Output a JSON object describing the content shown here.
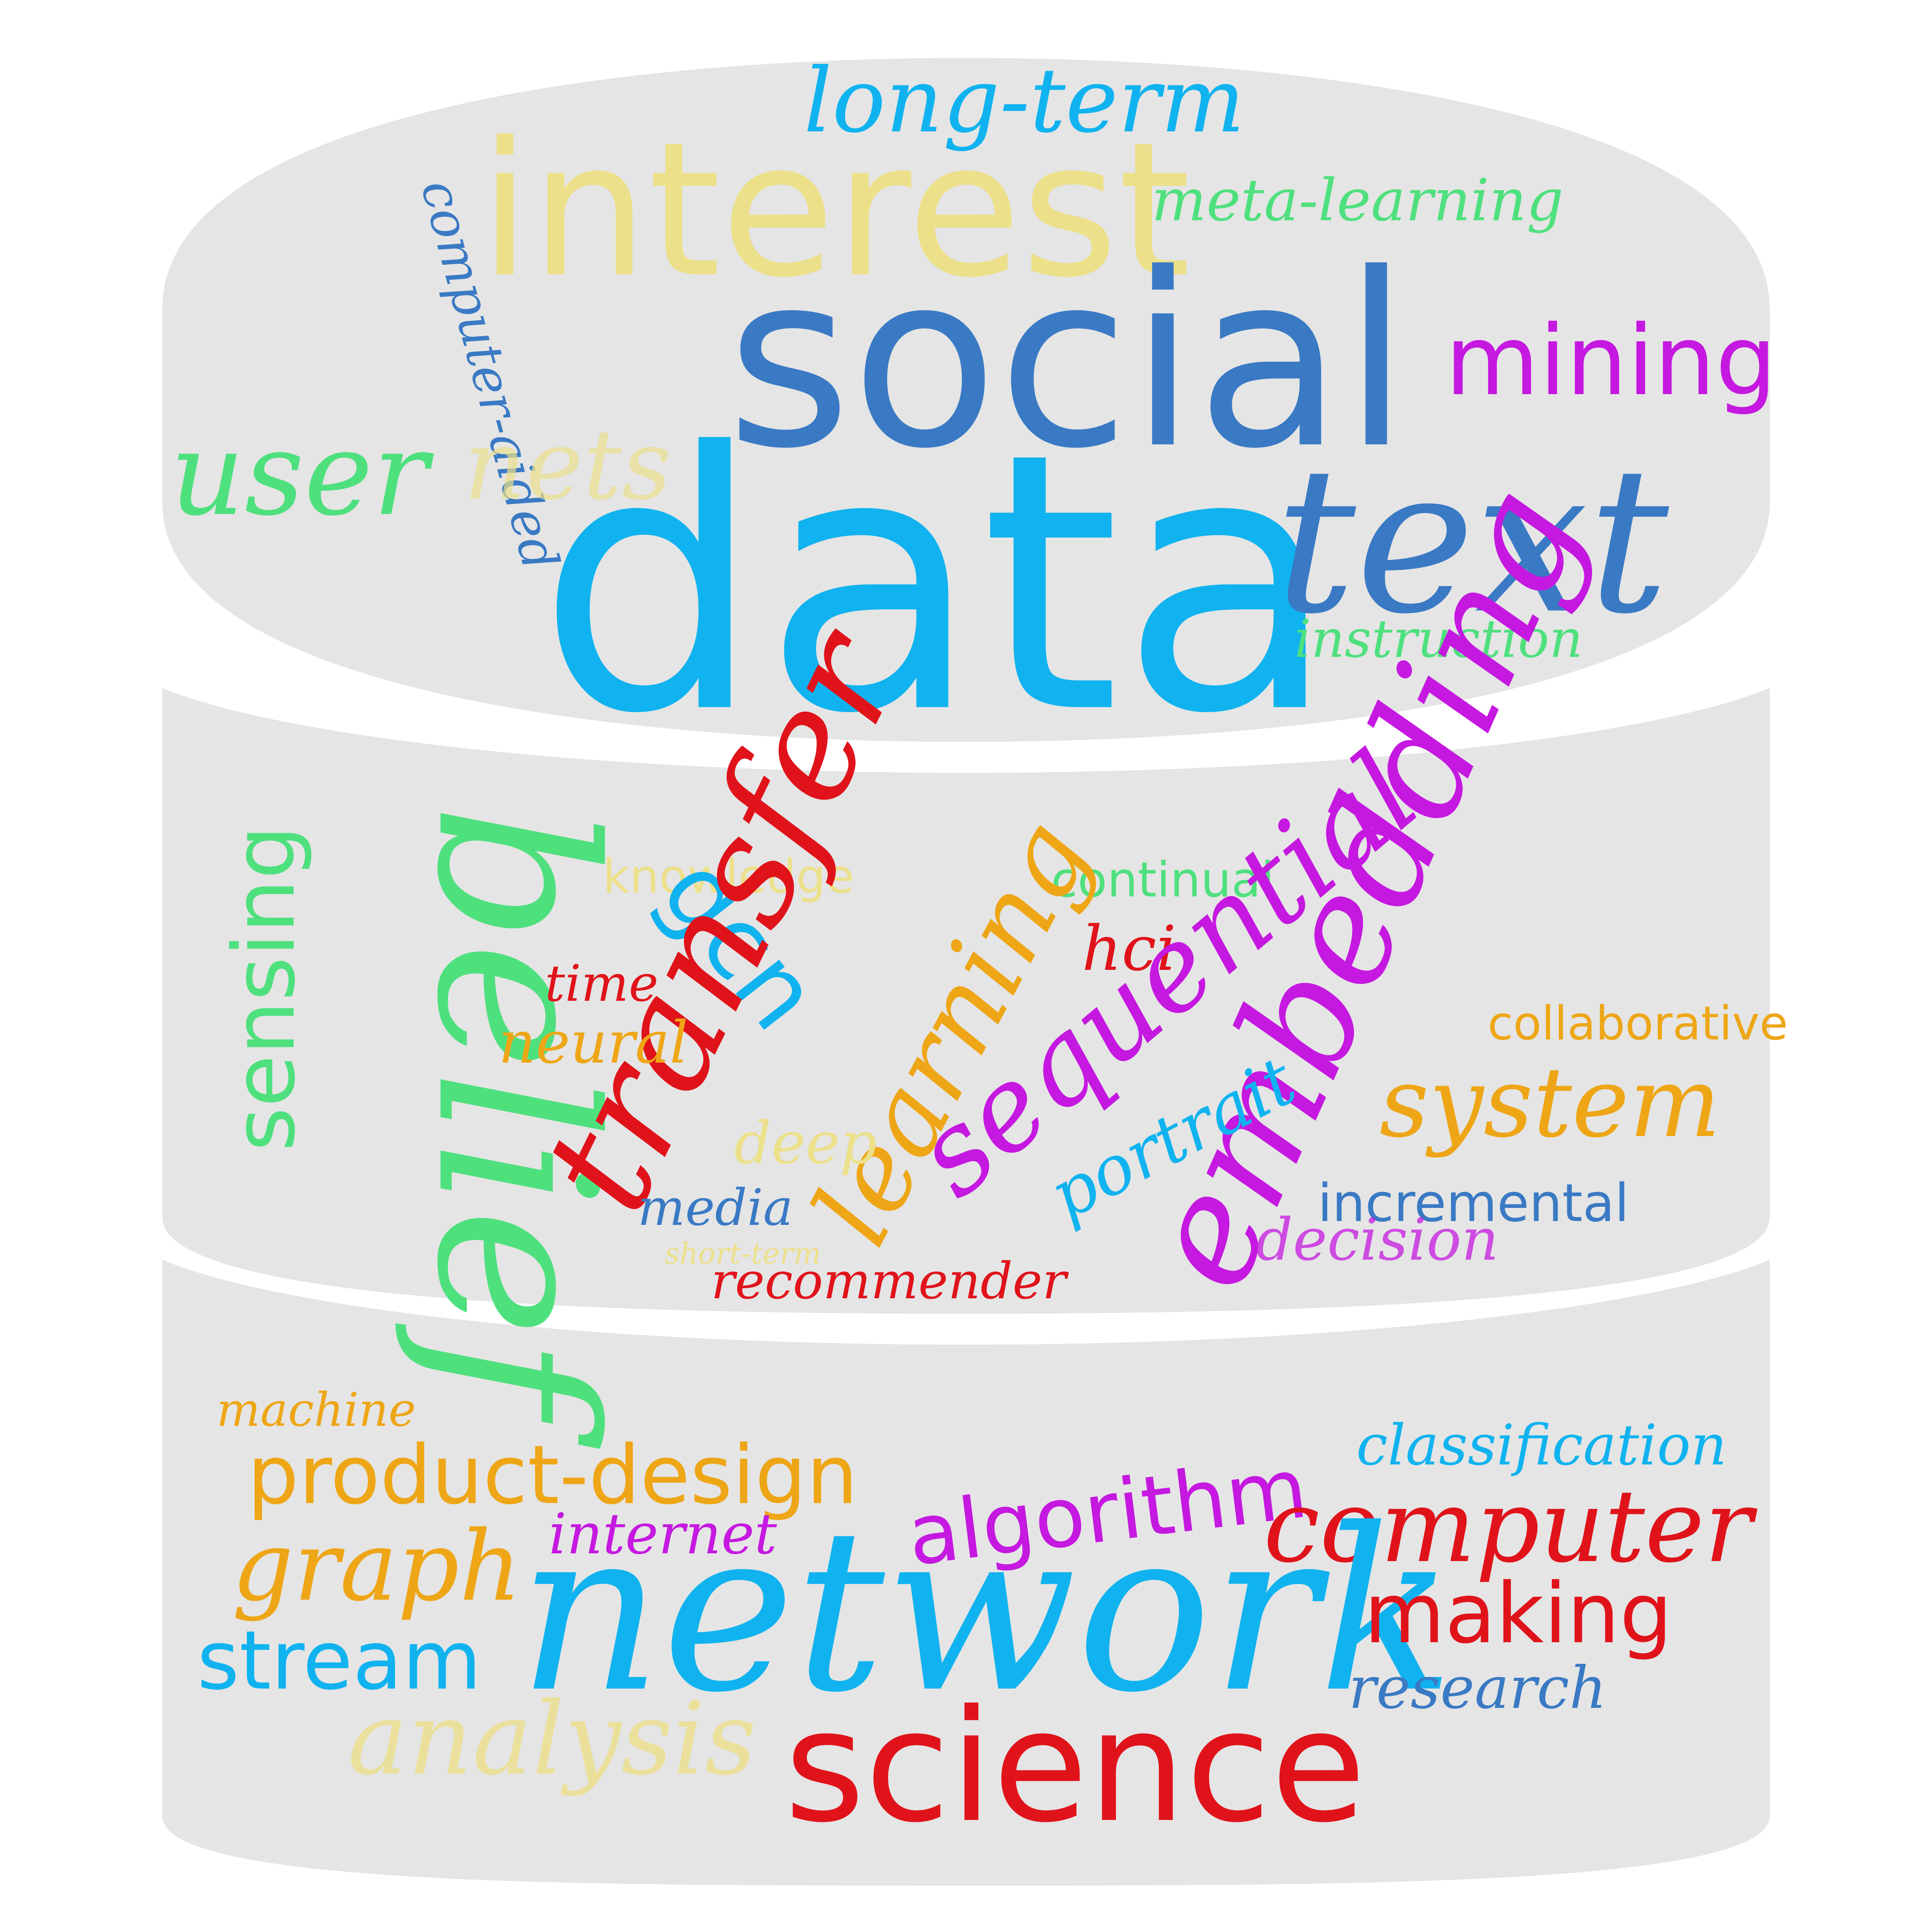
{
  "colors": {
    "background": "#ffffff",
    "disk_fill": "#e5e5e5",
    "sky": "#10b3ef",
    "steel_blue": "#3a7ac4",
    "khaki": "#ece08a",
    "green": "#4fe07e",
    "magenta": "#c518e0",
    "red": "#e0131b",
    "orange": "#eea616"
  },
  "icons": {
    "database_stack": "database-cylinder-icon"
  },
  "top_disk": {
    "words": [
      "long-term",
      "interest",
      "meta-learning",
      "computer-aided",
      "social",
      "mining",
      "user",
      "nets",
      "data",
      "text",
      "instruction"
    ]
  },
  "middle_disk": {
    "words": [
      "sensing",
      "belief",
      "knowledge",
      "continual",
      "gcn",
      "transfer",
      "learning",
      "hci",
      "time",
      "neural",
      "sequential",
      "embedding",
      "collaborative",
      "system",
      "deep",
      "portrait",
      "media",
      "incremental",
      "short-term",
      "decision",
      "recommender"
    ]
  },
  "bottom_disk": {
    "words": [
      "machine",
      "product-design",
      "classification",
      "algorithm",
      "internet",
      "computer",
      "graph",
      "network",
      "making",
      "stream",
      "research",
      "analysis",
      "science"
    ]
  }
}
